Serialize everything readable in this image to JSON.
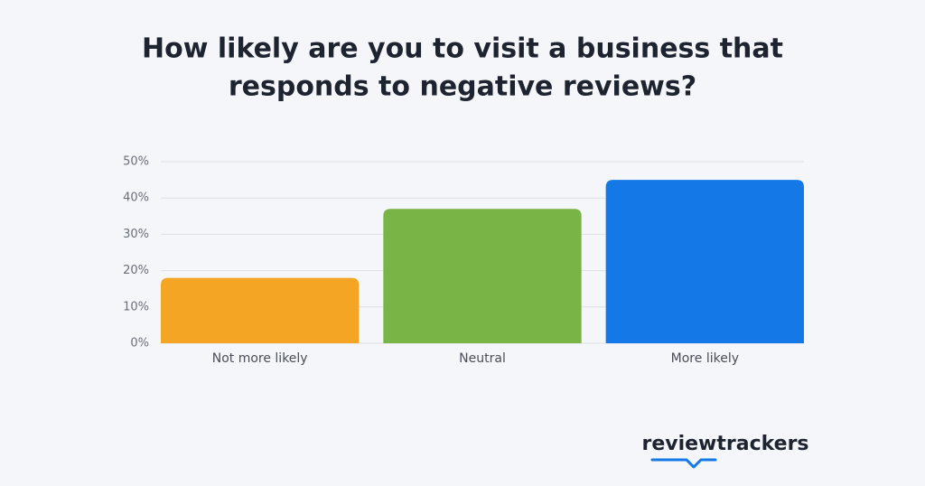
{
  "chart_data": {
    "type": "bar",
    "title": [
      "How likely are you to visit a business that",
      "responds to negative reviews?"
    ],
    "categories": [
      "Not more likely",
      "Neutral",
      "More likely"
    ],
    "values": [
      18,
      37,
      45
    ],
    "colors": [
      "#f5a524",
      "#79b546",
      "#1479e6"
    ],
    "ylim": [
      0,
      50
    ],
    "yticks": [
      {
        "value": 0,
        "label": "0%"
      },
      {
        "value": 10,
        "label": "10%"
      },
      {
        "value": 20,
        "label": "20%"
      },
      {
        "value": 30,
        "label": "30%"
      },
      {
        "value": 40,
        "label": "40%"
      },
      {
        "value": 50,
        "label": "50%"
      }
    ],
    "grid": true
  },
  "brand": "reviewtrackers"
}
